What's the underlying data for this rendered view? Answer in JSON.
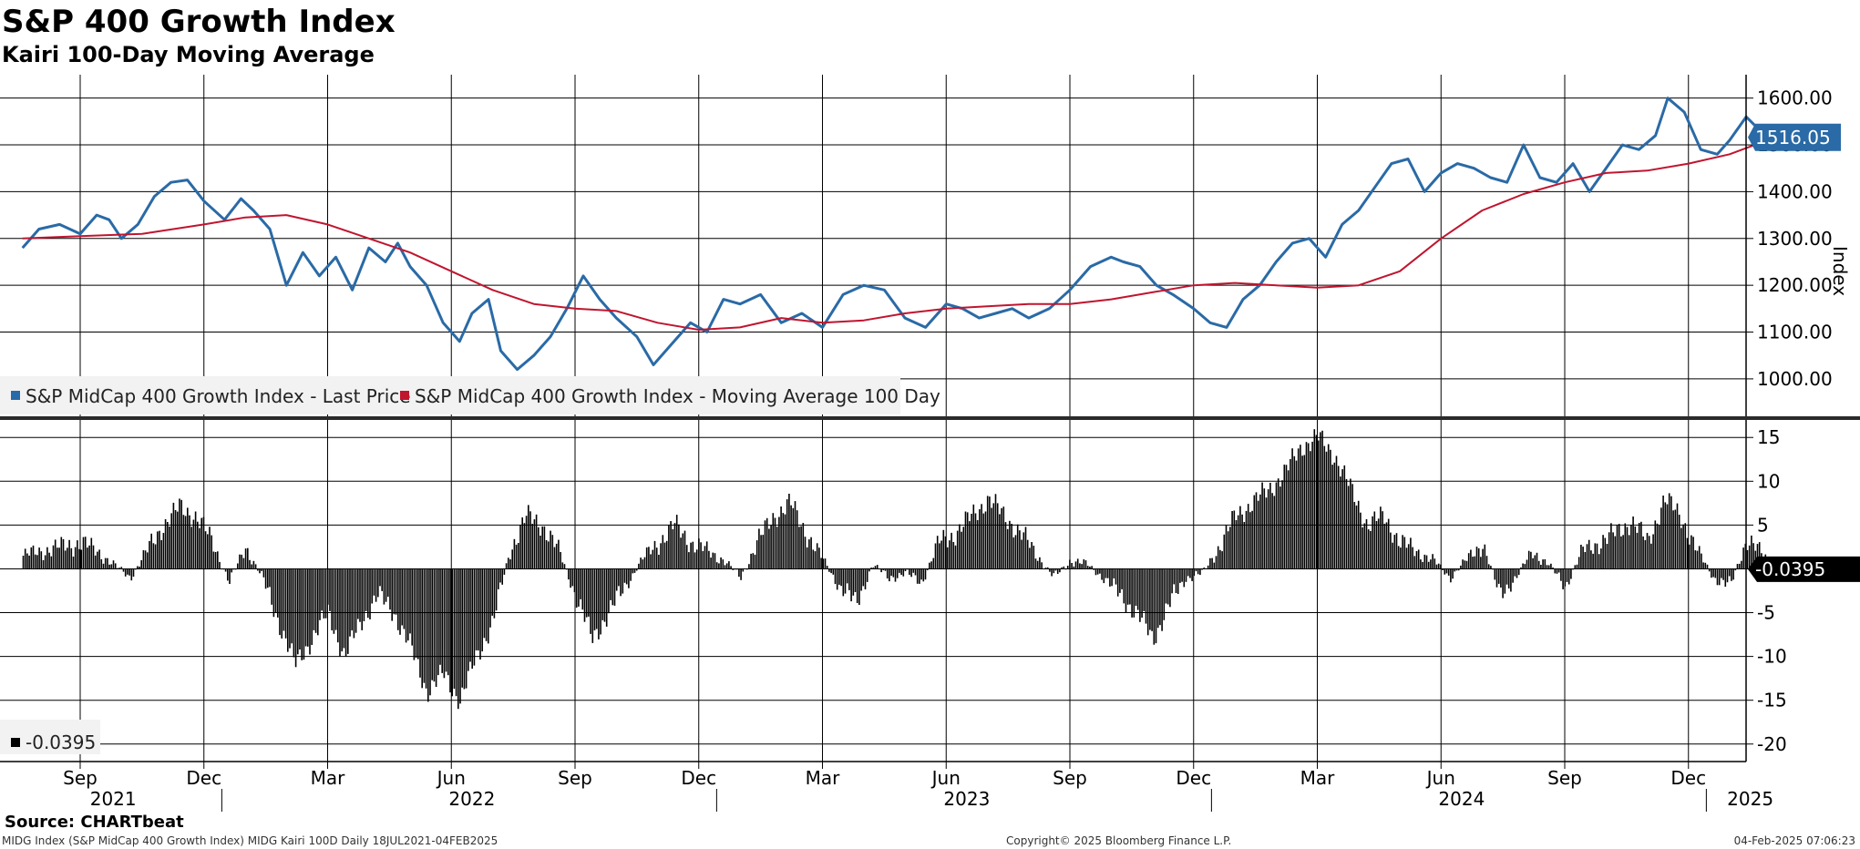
{
  "header": {
    "title": "S&P 400 Growth Index",
    "subtitle": "Kairi 100-Day Moving Average"
  },
  "footer": {
    "source": "Source: CHARTbeat",
    "description": "MIDG Index (S&P MidCap 400 Growth Index) MIDG Kairi 100D  Daily 18JUL2021-04FEB2025",
    "copyright": "Copyright© 2025 Bloomberg Finance L.P.",
    "timestamp": "04-Feb-2025 07:06:23"
  },
  "colors": {
    "price": "#2a6aa6",
    "ma": "#c0152f",
    "kairi": "#000000",
    "grid": "#000000"
  },
  "chart_data": [
    {
      "type": "line",
      "name": "price_panel",
      "ylabel": "Index",
      "ylim": [
        920,
        1650
      ],
      "yticks": [
        1000,
        1100,
        1200,
        1300,
        1400,
        1500,
        1600
      ],
      "ytick_labels": [
        "1000.00",
        "1100.00",
        "1200.00",
        "1300.00",
        "1400.00",
        "1500.00",
        "1600.00"
      ],
      "last_value_label": "1516.05",
      "legend": [
        "S&P MidCap 400 Growth Index - Last Price",
        "S&P MidCap 400 Growth Index - Moving Average 100 Day"
      ],
      "x_units": "months since Jul 2021",
      "xlim": [
        0.6,
        43.2
      ],
      "series": [
        {
          "name": "S&P MidCap 400 Growth Index - Last Price",
          "x": [
            0.6,
            1.0,
            1.5,
            2.0,
            2.4,
            2.7,
            3.0,
            3.4,
            3.8,
            4.2,
            4.6,
            5.0,
            5.5,
            5.9,
            6.2,
            6.6,
            7.0,
            7.4,
            7.8,
            8.2,
            8.6,
            9.0,
            9.4,
            9.7,
            10.0,
            10.4,
            10.8,
            11.2,
            11.5,
            11.9,
            12.2,
            12.6,
            13.0,
            13.4,
            13.8,
            14.2,
            14.6,
            15.0,
            15.5,
            15.9,
            16.3,
            16.8,
            17.2,
            17.6,
            18.0,
            18.5,
            19.0,
            19.5,
            20.0,
            20.5,
            21.0,
            21.5,
            22.0,
            22.5,
            23.0,
            23.4,
            23.8,
            24.2,
            24.6,
            25.0,
            25.5,
            26.0,
            26.5,
            27.0,
            27.3,
            27.7,
            28.1,
            28.5,
            29.0,
            29.4,
            29.8,
            30.2,
            30.6,
            31.0,
            31.4,
            31.8,
            32.2,
            32.6,
            33.0,
            33.4,
            33.8,
            34.2,
            34.6,
            35.0,
            35.4,
            35.8,
            36.2,
            36.6,
            37.0,
            37.4,
            37.8,
            38.2,
            38.6,
            39.0,
            39.4,
            39.8,
            40.2,
            40.5,
            40.9,
            41.3,
            41.7,
            42.0,
            42.4,
            42.8,
            43.1
          ],
          "y": [
            1280,
            1320,
            1330,
            1310,
            1350,
            1340,
            1300,
            1330,
            1390,
            1420,
            1425,
            1380,
            1340,
            1385,
            1360,
            1320,
            1200,
            1270,
            1220,
            1260,
            1190,
            1280,
            1250,
            1290,
            1240,
            1200,
            1120,
            1080,
            1140,
            1170,
            1060,
            1020,
            1050,
            1090,
            1150,
            1220,
            1170,
            1130,
            1090,
            1030,
            1070,
            1120,
            1100,
            1170,
            1160,
            1180,
            1120,
            1140,
            1110,
            1180,
            1200,
            1190,
            1130,
            1110,
            1160,
            1150,
            1130,
            1140,
            1150,
            1130,
            1150,
            1190,
            1240,
            1260,
            1250,
            1240,
            1200,
            1180,
            1150,
            1120,
            1110,
            1170,
            1200,
            1250,
            1290,
            1300,
            1260,
            1330,
            1360,
            1410,
            1460,
            1470,
            1400,
            1440,
            1460,
            1450,
            1430,
            1420,
            1500,
            1430,
            1420,
            1460,
            1400,
            1450,
            1500,
            1490,
            1520,
            1600,
            1570,
            1490,
            1480,
            1510,
            1560,
            1525,
            1516
          ]
        },
        {
          "name": "S&P MidCap 400 Growth Index - Moving Average 100 Day",
          "x": [
            0.6,
            2.0,
            3.5,
            5.0,
            6.0,
            7.0,
            8.0,
            9.0,
            10.0,
            11.0,
            12.0,
            13.0,
            14.0,
            15.0,
            16.0,
            17.0,
            18.0,
            19.0,
            20.0,
            21.0,
            22.0,
            23.0,
            24.0,
            25.0,
            26.0,
            27.0,
            28.0,
            29.0,
            30.0,
            31.0,
            32.0,
            33.0,
            34.0,
            35.0,
            36.0,
            37.0,
            38.0,
            39.0,
            40.0,
            41.0,
            42.0,
            43.1
          ],
          "y": [
            1300,
            1305,
            1310,
            1330,
            1345,
            1350,
            1330,
            1300,
            1270,
            1230,
            1190,
            1160,
            1150,
            1145,
            1120,
            1105,
            1110,
            1130,
            1120,
            1125,
            1140,
            1150,
            1155,
            1160,
            1160,
            1170,
            1185,
            1200,
            1205,
            1200,
            1195,
            1200,
            1230,
            1300,
            1360,
            1395,
            1420,
            1440,
            1445,
            1460,
            1480,
            1516
          ]
        }
      ]
    },
    {
      "type": "bar",
      "name": "kairi_panel",
      "ylim": [
        -22,
        17
      ],
      "yticks": [
        -20,
        -15,
        -10,
        -5,
        0,
        5,
        10,
        15
      ],
      "ytick_labels": [
        "-20",
        "-15",
        "-10",
        "-5",
        "0",
        "5",
        "10",
        "15"
      ],
      "last_value_label": "-0.0395",
      "legend": [
        "-0.0395"
      ],
      "x_units": "months since Jul 2021",
      "x": [
        0.6,
        1.0,
        1.5,
        2.0,
        2.4,
        2.8,
        3.2,
        3.6,
        4.0,
        4.4,
        4.8,
        5.2,
        5.6,
        6.0,
        6.4,
        6.8,
        7.2,
        7.6,
        8.0,
        8.4,
        8.8,
        9.2,
        9.6,
        10.0,
        10.4,
        10.8,
        11.2,
        11.6,
        12.0,
        12.4,
        12.8,
        13.2,
        13.6,
        14.0,
        14.4,
        14.8,
        15.2,
        15.6,
        16.0,
        16.4,
        16.8,
        17.2,
        17.6,
        18.0,
        18.4,
        18.8,
        19.2,
        19.6,
        20.0,
        20.4,
        20.8,
        21.2,
        21.6,
        22.0,
        22.4,
        22.8,
        23.2,
        23.6,
        24.0,
        24.4,
        24.8,
        25.2,
        25.6,
        26.0,
        26.4,
        26.8,
        27.2,
        27.6,
        28.0,
        28.4,
        28.8,
        29.2,
        29.6,
        30.0,
        30.4,
        30.8,
        31.2,
        31.6,
        32.0,
        32.4,
        32.8,
        33.2,
        33.6,
        34.0,
        34.4,
        34.8,
        35.2,
        35.6,
        36.0,
        36.4,
        36.8,
        37.2,
        37.6,
        38.0,
        38.4,
        38.8,
        39.2,
        39.6,
        40.0,
        40.4,
        40.8,
        41.2,
        41.6,
        42.0,
        42.4,
        42.8,
        43.1
      ],
      "values": [
        1.5,
        2.0,
        2.5,
        3.0,
        2.0,
        0.5,
        -1.0,
        2.0,
        5.0,
        7.0,
        6.0,
        3.0,
        -1.5,
        2.5,
        -1.0,
        -6.0,
        -11.0,
        -8.0,
        -5.0,
        -10.0,
        -6.0,
        -3.0,
        -5.0,
        -9.0,
        -14.0,
        -12.0,
        -15.0,
        -10.0,
        -6.0,
        2.0,
        6.0,
        5.0,
        2.0,
        -3.0,
        -8.0,
        -5.0,
        -2.0,
        1.0,
        3.0,
        5.0,
        3.0,
        2.0,
        1.0,
        -1.0,
        3.0,
        6.0,
        7.5,
        4.0,
        1.0,
        -2.0,
        -4.0,
        0.5,
        -1.0,
        -0.5,
        -1.5,
        3.0,
        4.0,
        6.0,
        8.0,
        6.0,
        4.0,
        1.5,
        -1.0,
        1.0,
        0.5,
        -1.0,
        -3.0,
        -5.0,
        -8.0,
        -4.0,
        -1.0,
        -0.5,
        2.5,
        6.0,
        7.5,
        9.0,
        11.0,
        14.0,
        15.0,
        13.0,
        9.0,
        5.0,
        6.0,
        3.0,
        2.0,
        1.0,
        -1.0,
        1.0,
        3.0,
        -3.0,
        -1.0,
        2.0,
        0.5,
        -2.0,
        2.0,
        3.0,
        4.0,
        5.5,
        3.0,
        8.0,
        6.0,
        2.0,
        -1.0,
        -2.0,
        3.5,
        1.5,
        -0.0395
      ]
    }
  ],
  "x_axis": {
    "month_ticks": [
      {
        "m": 2,
        "label": "Sep"
      },
      {
        "m": 5,
        "label": "Dec"
      },
      {
        "m": 8,
        "label": "Mar"
      },
      {
        "m": 11,
        "label": "Jun"
      },
      {
        "m": 14,
        "label": "Sep"
      },
      {
        "m": 17,
        "label": "Dec"
      },
      {
        "m": 20,
        "label": "Mar"
      },
      {
        "m": 23,
        "label": "Jun"
      },
      {
        "m": 26,
        "label": "Sep"
      },
      {
        "m": 29,
        "label": "Dec"
      },
      {
        "m": 32,
        "label": "Mar"
      },
      {
        "m": 35,
        "label": "Jun"
      },
      {
        "m": 38,
        "label": "Sep"
      },
      {
        "m": 41,
        "label": "Dec"
      }
    ],
    "year_separators": [
      5.5,
      17.5,
      29.5,
      41.5
    ],
    "year_labels": [
      {
        "m": 2.8,
        "label": "2021"
      },
      {
        "m": 11.5,
        "label": "2022"
      },
      {
        "m": 23.5,
        "label": "2023"
      },
      {
        "m": 35.5,
        "label": "2024"
      },
      {
        "m": 42.5,
        "label": "2025"
      }
    ]
  }
}
